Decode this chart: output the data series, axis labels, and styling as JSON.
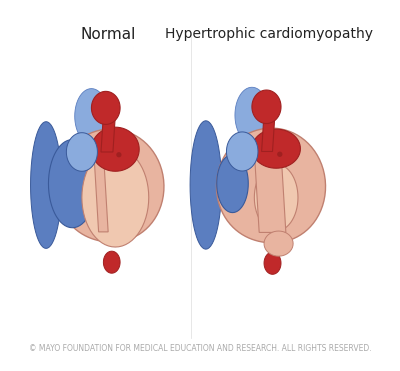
{
  "title_left": "Normal",
  "title_right": "Hypertrophic cardiomyopathy",
  "title_fontsize": 11,
  "title_color": "#222222",
  "footer_text": "© MAYO FOUNDATION FOR MEDICAL EDUCATION AND RESEARCH. ALL RIGHTS RESERVED.",
  "footer_fontsize": 5.5,
  "footer_color": "#aaaaaa",
  "bg_color": "#ffffff",
  "colors": {
    "heart_muscle": "#e8b4a0",
    "blood_red": "#c0292a",
    "blood_red_dark": "#a02020",
    "vein_blue": "#5b7ec0",
    "vein_blue_dark": "#3a5a9a",
    "vein_blue_light": "#8aabdd",
    "cavity_pink": "#f0c8b0",
    "outline": "#c08070"
  }
}
